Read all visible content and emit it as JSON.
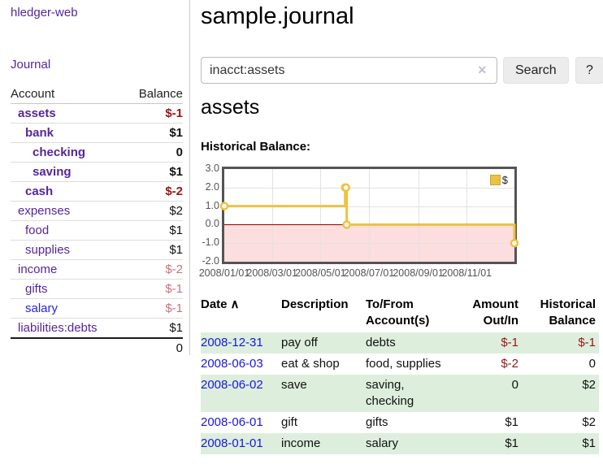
{
  "sidebar": {
    "app_title": "hledger-web",
    "journal_link": "Journal",
    "headers": {
      "account": "Account",
      "balance": "Balance"
    },
    "accounts": [
      {
        "name": "assets",
        "balance": "$-1"
      },
      {
        "name": "bank",
        "balance": "$1"
      },
      {
        "name": "checking",
        "balance": "0"
      },
      {
        "name": "saving",
        "balance": "$1"
      },
      {
        "name": "cash",
        "balance": "$-2"
      },
      {
        "name": "expenses",
        "balance": "$2"
      },
      {
        "name": "food",
        "balance": "$1"
      },
      {
        "name": "supplies",
        "balance": "$1"
      },
      {
        "name": "income",
        "balance": "$-2"
      },
      {
        "name": "gifts",
        "balance": "$-1"
      },
      {
        "name": "salary",
        "balance": "$-1"
      },
      {
        "name": "liabilities:debts",
        "balance": "$1"
      }
    ],
    "total": "0"
  },
  "main": {
    "title": "sample.journal",
    "search": {
      "value": "inacct:assets",
      "clear_icon": "×",
      "search_button": "Search",
      "help_button": "?"
    },
    "account_heading": "assets",
    "chart_title": "Historical Balance:"
  },
  "register": {
    "headers": {
      "date": "Date",
      "sort_indicator": "∧",
      "description": "Description",
      "accounts": "To/From\nAccount(s)",
      "amount": "Amount\nOut/In",
      "balance": "Historical\nBalance"
    },
    "rows": [
      {
        "date": "2008-12-31",
        "description": "pay off",
        "accounts": "debts",
        "amount": "$-1",
        "balance": "$-1"
      },
      {
        "date": "2008-06-03",
        "description": "eat & shop",
        "accounts": "food, supplies",
        "amount": "$-2",
        "balance": "0"
      },
      {
        "date": "2008-06-02",
        "description": "save",
        "accounts": "saving,\nchecking",
        "amount": "0",
        "balance": "$2"
      },
      {
        "date": "2008-06-01",
        "description": "gift",
        "accounts": "gifts",
        "amount": "$1",
        "balance": "$2"
      },
      {
        "date": "2008-01-01",
        "description": "income",
        "accounts": "salary",
        "amount": "$1",
        "balance": "$1"
      }
    ]
  },
  "chart_data": {
    "type": "line",
    "title": "Historical Balance:",
    "step": true,
    "x_domain": [
      "2008-01-01",
      "2008-12-31"
    ],
    "ylim": [
      -2,
      3
    ],
    "y_ticks": [
      "3.0",
      "2.0",
      "1.0",
      "0.0",
      "-1.0",
      "-2.0"
    ],
    "x_ticks": [
      "2008/01/01",
      "2008/03/01",
      "2008/05/01",
      "2008/07/01",
      "2008/09/01",
      "2008/11/01"
    ],
    "series": [
      {
        "name": "$",
        "color": "#edc240",
        "points": [
          {
            "x": "2008-01-01",
            "y": 1
          },
          {
            "x": "2008-06-01",
            "y": 2
          },
          {
            "x": "2008-06-02",
            "y": 2
          },
          {
            "x": "2008-06-03",
            "y": 0
          },
          {
            "x": "2008-12-31",
            "y": -1
          }
        ]
      }
    ],
    "grid": true,
    "legend_position": "top-right",
    "negative_region_color": "#fcdede",
    "zero_line_color": "#8b0000"
  }
}
